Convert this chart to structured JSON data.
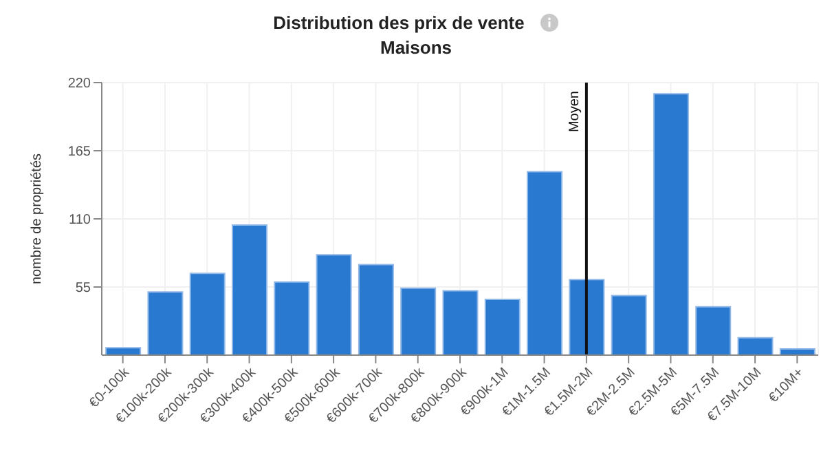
{
  "chart_data": {
    "type": "bar",
    "title": "Distribution des prix de vente",
    "subtitle": "Maisons",
    "ylabel": "nombre de propriétés",
    "categories": [
      "€0-100k",
      "€100k-200k",
      "€200k-300k",
      "€300k-400k",
      "€400k-500k",
      "€500k-600k",
      "€600k-700k",
      "€700k-800k",
      "€800k-900k",
      "€900k-1M",
      "€1M-1.5M",
      "€1.5M-2M",
      "€2M-2.5M",
      "€2.5M-5M",
      "€5M-7.5M",
      "€7.5M-10M",
      "€10M+"
    ],
    "values": [
      6,
      51,
      66,
      105,
      59,
      81,
      73,
      54,
      52,
      45,
      148,
      61,
      48,
      211,
      39,
      14,
      5
    ],
    "color": "#2979d0",
    "ylim": [
      0,
      220
    ],
    "yticks": [
      55,
      110,
      165,
      220
    ],
    "grid": true,
    "ref_lines": [
      {
        "axis": "x",
        "value": "€1.5M-2M",
        "label": "Moyen",
        "color": "#111111"
      }
    ]
  }
}
